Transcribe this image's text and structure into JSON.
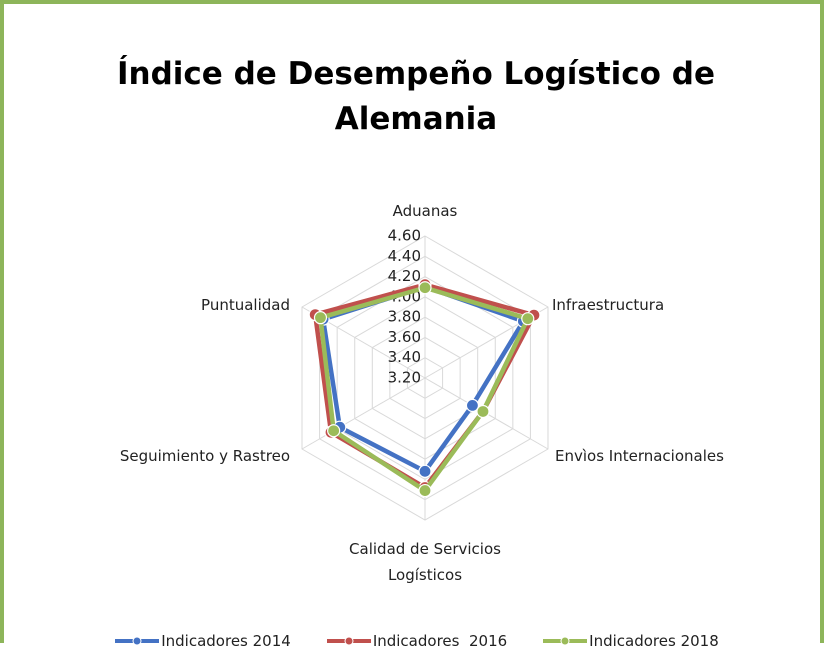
{
  "chart_data": {
    "type": "radar",
    "title": "Índice de Desempeño Logístico de Alemania",
    "categories": [
      "Aduanas",
      "Infraestructura",
      "Envìos Internacionales",
      "Calidad de Servicios Logísticos",
      "Seguimiento y Rastreo",
      "Puntualidad"
    ],
    "series": [
      {
        "name": "Indicadores 2014",
        "color": "#4472c4",
        "values": [
          4.1,
          4.32,
          3.74,
          4.12,
          4.17,
          4.36
        ]
      },
      {
        "name": "Indicadores  2016",
        "color": "#c0504d",
        "values": [
          4.12,
          4.44,
          3.86,
          4.28,
          4.27,
          4.45
        ]
      },
      {
        "name": "Indicadores 2018",
        "color": "#9bbb59",
        "values": [
          4.09,
          4.37,
          3.86,
          4.31,
          4.24,
          4.39
        ]
      }
    ],
    "ylim": [
      3.2,
      4.6
    ],
    "yticks": [
      {
        "value": 3.2,
        "label": "3.20"
      },
      {
        "value": 3.4,
        "label": "3.40"
      },
      {
        "value": 3.6,
        "label": "3.60"
      },
      {
        "value": 3.8,
        "label": "3.80"
      },
      {
        "value": 4.0,
        "label": "4.00"
      },
      {
        "value": 4.2,
        "label": "4.20"
      },
      {
        "value": 4.4,
        "label": "4.40"
      },
      {
        "value": 4.6,
        "label": "4.60"
      }
    ],
    "grid": true,
    "legend": "bottom"
  }
}
